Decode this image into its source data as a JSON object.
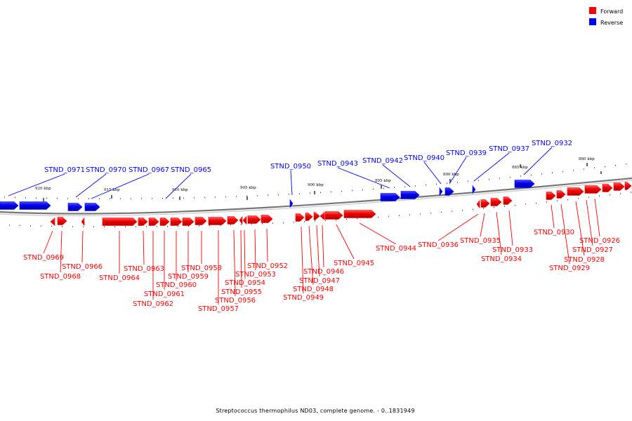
{
  "legend": {
    "forward": {
      "label": "Forward",
      "color": "#ff0000"
    },
    "reverse": {
      "label": "Reverse",
      "color": "#0000ff"
    }
  },
  "caption": "Streptococcus thermophilus ND03, complete genome. - 0..1831949",
  "ticks": [
    "920 kbp",
    "915 kbp",
    "910 kbp",
    "905 kbp",
    "900 kbp",
    "895 kbp",
    "890 kbp",
    "885 kbp",
    "880 kbp"
  ],
  "forward_labels": [
    "STND_0969",
    "STND_0968",
    "STND_0966",
    "STND_0964",
    "STND_0963",
    "STND_0962",
    "STND_0961",
    "STND_0960",
    "STND_0959",
    "STND_0958",
    "STND_0957",
    "STND_0956",
    "STND_0955",
    "STND_0954",
    "STND_0953",
    "STND_0952",
    "STND_0949",
    "STND_0948",
    "STND_0947",
    "STND_0946",
    "STND_0945",
    "STND_0944",
    "STND_0936",
    "STND_0935",
    "STND_0934",
    "STND_0933",
    "STND_0930",
    "STND_0929",
    "STND_0928",
    "STND_0927",
    "STND_0926"
  ],
  "reverse_labels": [
    "STND_0971",
    "STND_0970",
    "STND_0967",
    "STND_0965",
    "STND_0950",
    "STND_0943",
    "STND_0942",
    "STND_0940",
    "STND_0939",
    "STND_0937",
    "STND_0932"
  ]
}
